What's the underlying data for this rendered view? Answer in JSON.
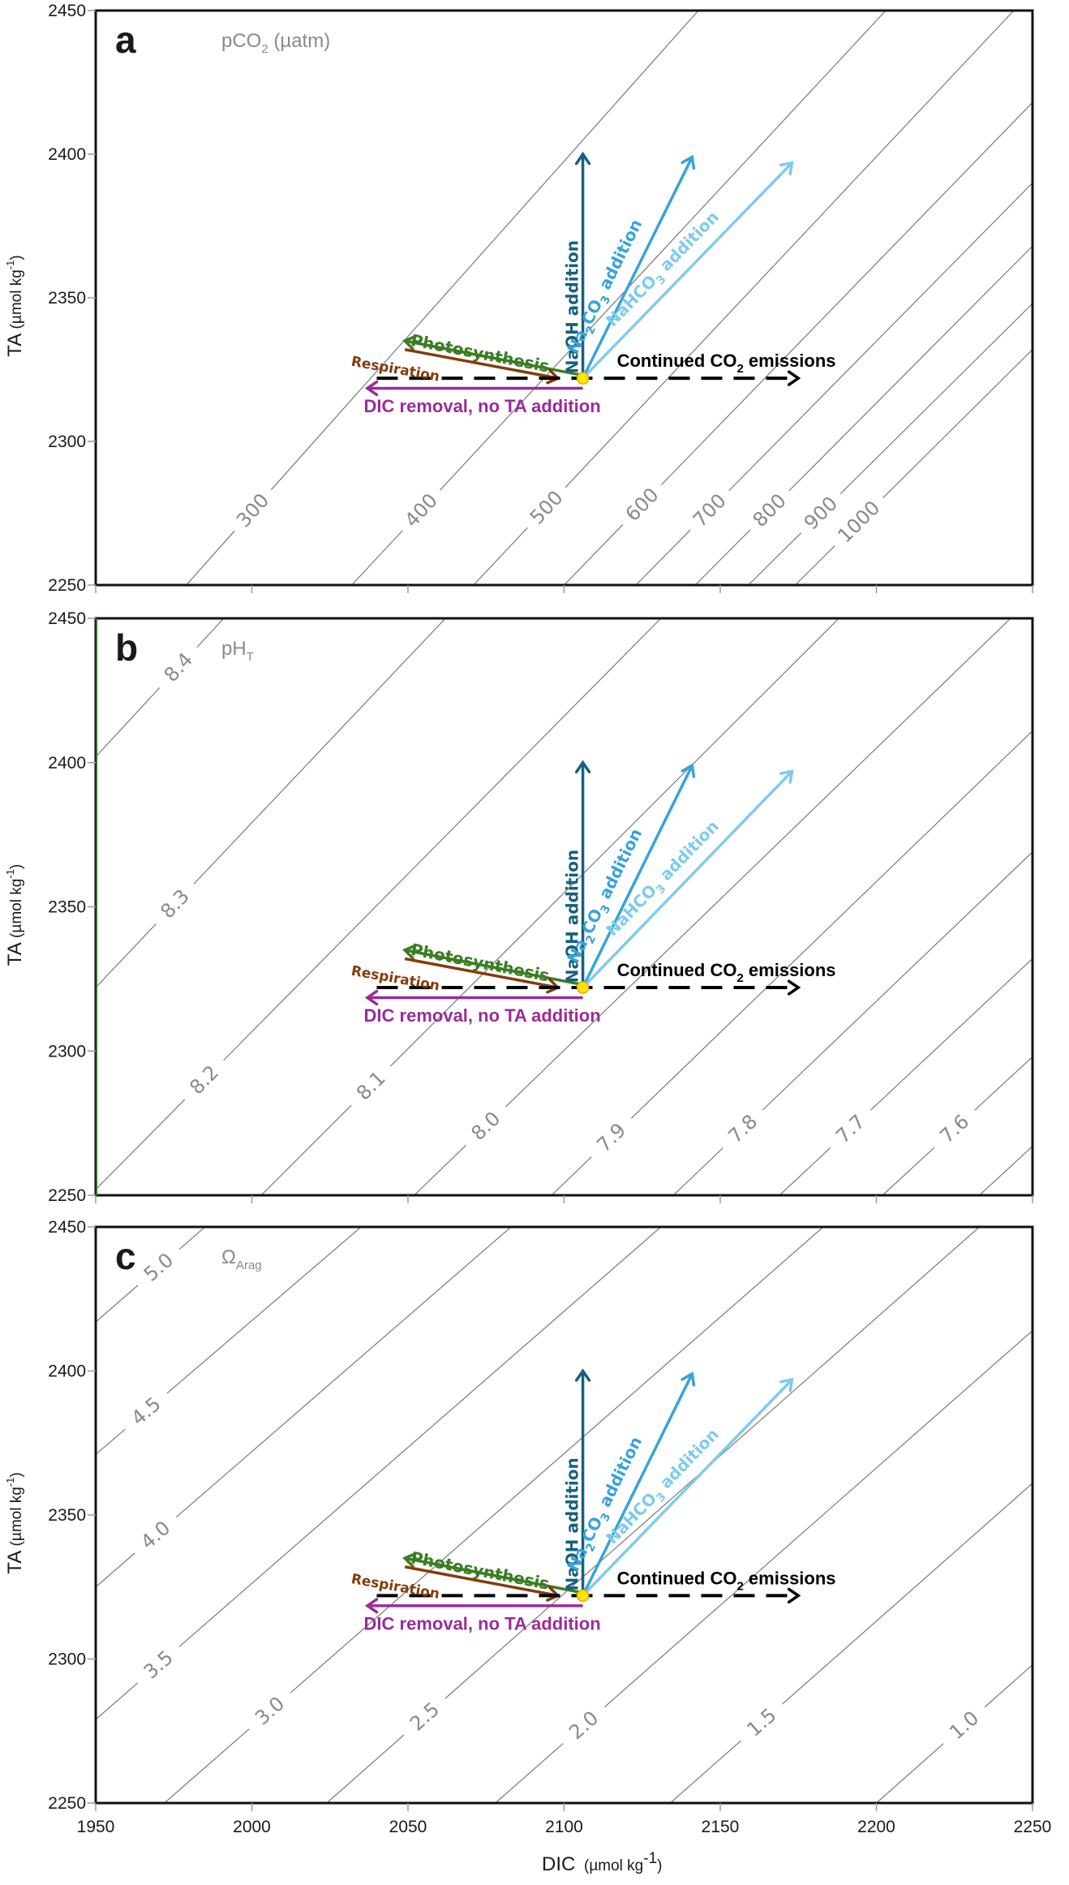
{
  "figure": {
    "x_axis_title": "DIC",
    "x_axis_units": "(µmol kg",
    "x_axis_units_sup": "-1",
    "y_axis_title": "TA",
    "y_axis_units": "(µmol kg",
    "y_axis_units_sup": "-1",
    "x_ticks": [
      1950,
      2000,
      2050,
      2100,
      2150,
      2200,
      2250
    ],
    "y_ticks": [
      2250,
      2300,
      2350,
      2400,
      2450
    ]
  },
  "colors": {
    "contour": "#7a7a7a",
    "naoh": "#17607f",
    "na2co3": "#38a3da",
    "nahco3": "#7fcbee",
    "photosynthesis": "#3b7d23",
    "respiration": "#843c0c",
    "dic_removal": "#9b2b96",
    "emissions": "#000000",
    "start_point_fill": "#ffe600",
    "start_point_stroke": "#e8a800"
  },
  "chart_data": [
    {
      "type": "line",
      "panel": "a",
      "title": "pCO",
      "title_sub": "2",
      "title_suffix": " (µatm)",
      "xlabel": "DIC (µmol kg-1)",
      "ylabel": "TA (µmol kg-1)",
      "xlim": [
        1950,
        2250
      ],
      "ylim": [
        2250,
        2450
      ],
      "grid": false,
      "contours": [
        {
          "label": "300",
          "p1": [
            1979,
            2250
          ],
          "p2": [
            2143,
            2450
          ],
          "label_at_ta": 2276
        },
        {
          "label": "400",
          "p1": [
            2032,
            2250
          ],
          "p2": [
            2203,
            2450
          ],
          "label_at_ta": 2276
        },
        {
          "label": "500",
          "p1": [
            2071,
            2250
          ],
          "p2": [
            2244,
            2450
          ],
          "label_at_ta": 2277
        },
        {
          "label": "600",
          "p1": [
            2100,
            2250
          ],
          "p2": [
            2250,
            2418
          ],
          "label_at_ta": 2278
        },
        {
          "label": "700",
          "p1": [
            2123,
            2250
          ],
          "p2": [
            2250,
            2390
          ],
          "label_at_ta": 2276
        },
        {
          "label": "800",
          "p1": [
            2142,
            2250
          ],
          "p2": [
            2250,
            2368
          ],
          "label_at_ta": 2276
        },
        {
          "label": "900",
          "p1": [
            2159,
            2250
          ],
          "p2": [
            2250,
            2348
          ],
          "label_at_ta": 2275
        },
        {
          "label": "1000",
          "p1": [
            2174,
            2250
          ],
          "p2": [
            2250,
            2332
          ],
          "label_at_ta": 2272
        }
      ]
    },
    {
      "type": "line",
      "panel": "b",
      "title": "pH",
      "title_sub": "T",
      "title_suffix": "",
      "xlabel": "DIC (µmol kg-1)",
      "ylabel": "TA (µmol kg-1)",
      "xlim": [
        1950,
        2250
      ],
      "ylim": [
        2250,
        2450
      ],
      "grid": false,
      "contours": [
        {
          "label": "8.4",
          "p1": [
            1950,
            2402
          ],
          "p2": [
            1991,
            2450
          ],
          "label_at_ta": 2433
        },
        {
          "label": "8.3",
          "p1": [
            1950,
            2322
          ],
          "p2": [
            2062,
            2450
          ],
          "label_at_ta": 2351
        },
        {
          "label": "8.2",
          "p1": [
            1950,
            2252
          ],
          "p2": [
            2131,
            2450
          ],
          "label_at_ta": 2290
        },
        {
          "label": "8.1",
          "p1": [
            2003,
            2250
          ],
          "p2": [
            2188,
            2450
          ],
          "label_at_ta": 2288
        },
        {
          "label": "8.0",
          "p1": [
            2052,
            2250
          ],
          "p2": [
            2243,
            2450
          ],
          "label_at_ta": 2274
        },
        {
          "label": "7.9",
          "p1": [
            2096,
            2250
          ],
          "p2": [
            2250,
            2411
          ],
          "label_at_ta": 2270
        },
        {
          "label": "7.8",
          "p1": [
            2135,
            2250
          ],
          "p2": [
            2250,
            2369
          ],
          "label_at_ta": 2273
        },
        {
          "label": "7.7",
          "p1": [
            2169,
            2250
          ],
          "p2": [
            2250,
            2332
          ],
          "label_at_ta": 2273
        },
        {
          "label": "7.6",
          "p1": [
            2202,
            2250
          ],
          "p2": [
            2250,
            2298
          ],
          "label_at_ta": 2273
        },
        {
          "label": "",
          "p1": [
            2233,
            2250
          ],
          "p2": [
            2250,
            2267
          ],
          "label_at_ta": null
        }
      ]
    },
    {
      "type": "line",
      "panel": "c",
      "title": "Ω",
      "title_sub": "Arag",
      "title_suffix": "",
      "xlabel": "DIC (µmol kg-1)",
      "ylabel": "TA (µmol kg-1)",
      "xlim": [
        1950,
        2250
      ],
      "ylim": [
        2250,
        2450
      ],
      "grid": false,
      "contours": [
        {
          "label": "5.0",
          "p1": [
            1950,
            2417
          ],
          "p2": [
            1985,
            2450
          ],
          "label_at_ta": 2436
        },
        {
          "label": "4.5",
          "p1": [
            1950,
            2371
          ],
          "p2": [
            2035,
            2450
          ],
          "label_at_ta": 2386
        },
        {
          "label": "4.0",
          "p1": [
            1950,
            2325
          ],
          "p2": [
            2083,
            2450
          ],
          "label_at_ta": 2343
        },
        {
          "label": "3.5",
          "p1": [
            1950,
            2279
          ],
          "p2": [
            2131,
            2450
          ],
          "label_at_ta": 2298
        },
        {
          "label": "3.0",
          "p1": [
            1972,
            2250
          ],
          "p2": [
            2183,
            2450
          ],
          "label_at_ta": 2282
        },
        {
          "label": "2.5",
          "p1": [
            2024,
            2250
          ],
          "p2": [
            2233,
            2450
          ],
          "label_at_ta": 2280
        },
        {
          "label": "2.0",
          "p1": [
            2078,
            2250
          ],
          "p2": [
            2250,
            2414
          ],
          "label_at_ta": 2277
        },
        {
          "label": "1.5",
          "p1": [
            2134,
            2250
          ],
          "p2": [
            2250,
            2361
          ],
          "label_at_ta": 2278
        },
        {
          "label": "1.0",
          "p1": [
            2200,
            2250
          ],
          "p2": [
            2250,
            2298
          ],
          "label_at_ta": 2277
        }
      ]
    }
  ],
  "vectors": {
    "start_point": [
      2106,
      2322
    ],
    "items": [
      {
        "id": "naoh",
        "label": "NaOH addition",
        "from": [
          2106,
          2322
        ],
        "to": [
          2106,
          2400
        ],
        "style": "solid",
        "color_key": "naoh"
      },
      {
        "id": "na2co3",
        "label_pre": "Na",
        "label_sub1": "2",
        "label_mid": "CO",
        "label_sub2": "3",
        "label_post": " addition",
        "from": [
          2106,
          2322
        ],
        "to": [
          2141,
          2399
        ],
        "style": "solid",
        "color_key": "na2co3"
      },
      {
        "id": "nahco3",
        "label_pre": "NaHCO",
        "label_sub": "3",
        "label_post": " addition",
        "from": [
          2106,
          2322
        ],
        "to": [
          2173,
          2397
        ],
        "style": "solid",
        "color_key": "nahco3"
      },
      {
        "id": "photosynthesis",
        "label": "Photosynthesis",
        "from": [
          2106,
          2323
        ],
        "to": [
          2049,
          2335
        ],
        "style": "solid",
        "color_key": "photosynthesis"
      },
      {
        "id": "respiration",
        "label": "Respiration",
        "from": [
          2049,
          2332
        ],
        "to": [
          2098,
          2322
        ],
        "style": "solid",
        "color_key": "respiration"
      },
      {
        "id": "emissions",
        "label_pre": "Continued CO",
        "label_sub": "2",
        "label_post": " emissions",
        "from": [
          2040,
          2322
        ],
        "to": [
          2175,
          2322
        ],
        "style": "dashed",
        "color_key": "emissions"
      },
      {
        "id": "dic_removal",
        "label": "DIC removal, no TA addition",
        "from": [
          2106,
          2318.5
        ],
        "to": [
          2037,
          2318.5
        ],
        "style": "solid",
        "color_key": "dic_removal"
      }
    ]
  }
}
